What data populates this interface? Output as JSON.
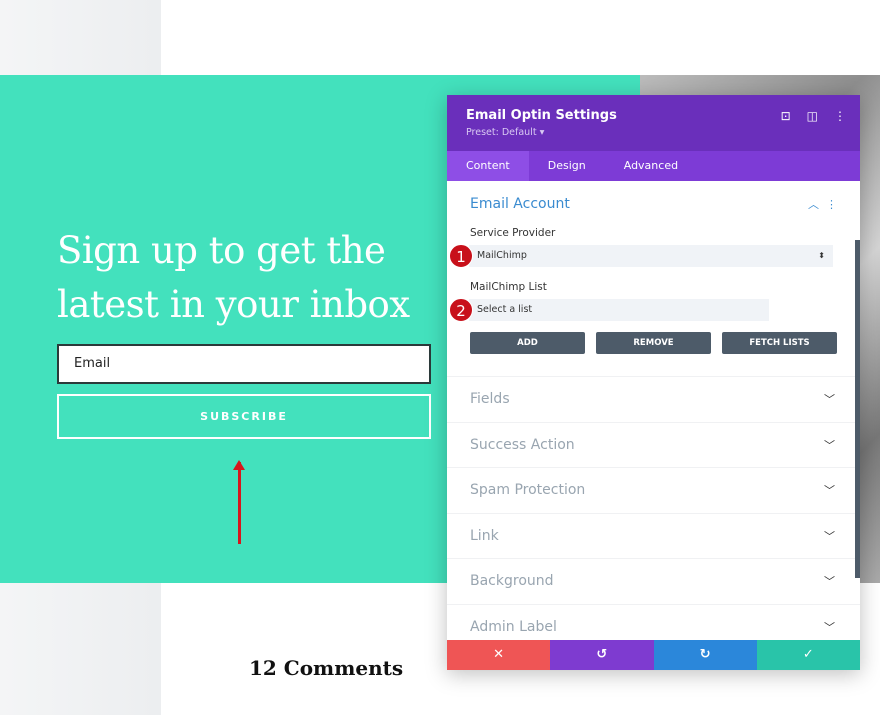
{
  "page": {
    "headline": "Sign up to get the latest in your inbox",
    "email_placeholder": "Email",
    "subscribe_label": "SUBSCRIBE",
    "comments_heading": "12 Comments"
  },
  "panel": {
    "title": "Email Optin Settings",
    "preset": "Preset: Default ▾",
    "icons": [
      "focus-icon",
      "split-view-icon",
      "more-vertical-icon"
    ],
    "tabs": [
      {
        "label": "Content",
        "active": true
      },
      {
        "label": "Design"
      },
      {
        "label": "Advanced"
      }
    ],
    "email_account": {
      "title": "Email Account",
      "service_provider_label": "Service Provider",
      "service_provider_value": "MailChimp",
      "list_label": "MailChimp List",
      "list_value": "Select a list",
      "buttons": {
        "add": "ADD",
        "remove": "REMOVE",
        "fetch": "FETCH LISTS"
      },
      "badges": [
        "1",
        "2"
      ]
    },
    "sections": [
      "Fields",
      "Success Action",
      "Spam Protection",
      "Link",
      "Background",
      "Admin Label"
    ],
    "footer": {
      "colors": [
        "#ef5555",
        "#7e3bd0",
        "#2b87da",
        "#29c4a9"
      ]
    }
  },
  "colors": {
    "teal": "#43e1bd",
    "purple": "#6a2fbb",
    "annotation_red": "#c8101a"
  }
}
